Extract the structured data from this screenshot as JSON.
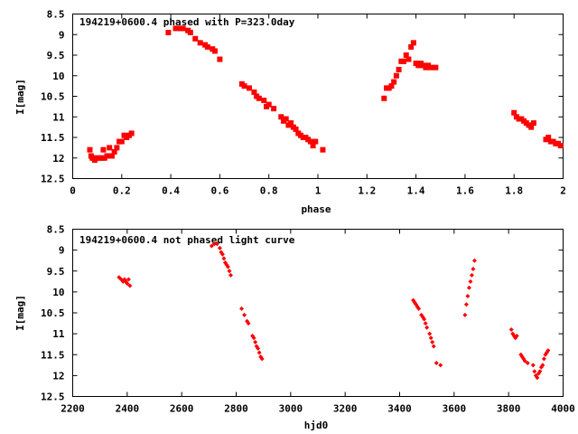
{
  "colors": {
    "points": "#ff0000",
    "axes": "#000000",
    "background": "#ffffff"
  },
  "chart_data": [
    {
      "type": "scatter",
      "title": "194219+0600.4 phased with P=323.0day",
      "xlabel": "phase",
      "ylabel": "I[mag]",
      "xlim": [
        0,
        2
      ],
      "ylim": [
        12.5,
        8.5
      ],
      "y_inverted": true,
      "grid": false,
      "xticks": [
        "0",
        "0.2",
        "0.4",
        "0.6",
        "0.8",
        "1",
        "1.2",
        "1.4",
        "1.6",
        "1.8",
        "2"
      ],
      "yticks": [
        "8.5",
        "9",
        "9.5",
        "10",
        "10.5",
        "11",
        "11.5",
        "12",
        "12.5"
      ],
      "series": [
        {
          "marker": "filled-square",
          "x": [
            0.07,
            0.075,
            0.08,
            0.085,
            0.09,
            0.1,
            0.11,
            0.12,
            0.125,
            0.13,
            0.14,
            0.15,
            0.16,
            0.17,
            0.18,
            0.19,
            0.2,
            0.21,
            0.22,
            0.23,
            0.24,
            0.39,
            0.42,
            0.44,
            0.45,
            0.47,
            0.48,
            0.5,
            0.52,
            0.54,
            0.55,
            0.57,
            0.58,
            0.6,
            0.69,
            0.7,
            0.72,
            0.74,
            0.75,
            0.76,
            0.78,
            0.79,
            0.8,
            0.82,
            0.85,
            0.86,
            0.87,
            0.88,
            0.89,
            0.9,
            0.91,
            0.92,
            0.93,
            0.94,
            0.95,
            0.96,
            0.97,
            0.98,
            0.99,
            1.02,
            1.27,
            1.28,
            1.29,
            1.3,
            1.31,
            1.32,
            1.33,
            1.34,
            1.35,
            1.36,
            1.37,
            1.38,
            1.39,
            1.4,
            1.41,
            1.42,
            1.43,
            1.44,
            1.45,
            1.46,
            1.48,
            1.8,
            1.81,
            1.82,
            1.83,
            1.84,
            1.85,
            1.86,
            1.87,
            1.88,
            1.93,
            1.94,
            1.95,
            1.96,
            1.97,
            1.98,
            1.99
          ],
          "y": [
            11.8,
            11.95,
            12.0,
            12.0,
            12.05,
            12.0,
            12.0,
            12.0,
            11.8,
            12.0,
            11.95,
            11.75,
            11.95,
            11.85,
            11.75,
            11.6,
            11.6,
            11.45,
            11.5,
            11.45,
            11.4,
            8.95,
            8.85,
            8.85,
            8.85,
            8.9,
            8.95,
            9.1,
            9.2,
            9.25,
            9.3,
            9.35,
            9.4,
            9.6,
            10.2,
            10.25,
            10.3,
            10.4,
            10.5,
            10.55,
            10.6,
            10.75,
            10.7,
            10.8,
            11.0,
            11.1,
            11.05,
            11.2,
            11.15,
            11.25,
            11.3,
            11.4,
            11.45,
            11.5,
            11.5,
            11.55,
            11.6,
            11.7,
            11.6,
            11.8,
            10.55,
            10.3,
            10.3,
            10.25,
            10.15,
            10.0,
            9.85,
            9.65,
            9.65,
            9.5,
            9.6,
            9.3,
            9.2,
            9.7,
            9.75,
            9.7,
            9.75,
            9.8,
            9.75,
            9.8,
            9.8,
            10.9,
            11.0,
            11.05,
            11.05,
            11.1,
            11.15,
            11.2,
            11.25,
            11.15,
            11.55,
            11.5,
            11.6,
            11.6,
            11.65,
            11.65,
            11.7
          ]
        }
      ]
    },
    {
      "type": "scatter",
      "title": "194219+0600.4 not phased light curve",
      "xlabel": "hjd0",
      "ylabel": "I[mag]",
      "xlim": [
        2200,
        4000
      ],
      "ylim": [
        12.5,
        8.5
      ],
      "y_inverted": true,
      "grid": false,
      "xticks": [
        "2200",
        "2400",
        "2600",
        "2800",
        "3000",
        "3200",
        "3400",
        "3600",
        "3800",
        "4000"
      ],
      "yticks": [
        "8.5",
        "9",
        "9.5",
        "10",
        "10.5",
        "11",
        "11.5",
        "12",
        "12.5"
      ],
      "series": [
        {
          "marker": "small-diamond",
          "x": [
            2370,
            2378,
            2385,
            2390,
            2395,
            2400,
            2405,
            2410,
            2710,
            2720,
            2730,
            2740,
            2745,
            2750,
            2755,
            2760,
            2765,
            2770,
            2775,
            2780,
            2820,
            2830,
            2840,
            2845,
            2860,
            2865,
            2870,
            2875,
            2880,
            2885,
            2890,
            2895,
            3450,
            3455,
            3460,
            3465,
            3470,
            3480,
            3485,
            3490,
            3495,
            3500,
            3510,
            3515,
            3520,
            3525,
            3535,
            3550,
            3640,
            3645,
            3650,
            3655,
            3660,
            3665,
            3670,
            3675,
            3810,
            3815,
            3820,
            3825,
            3830,
            3845,
            3850,
            3855,
            3860,
            3870,
            3890,
            3895,
            3900,
            3905,
            3910,
            3915,
            3920,
            3925,
            3930,
            3935,
            3940,
            3945
          ],
          "y": [
            9.65,
            9.7,
            9.75,
            9.7,
            9.75,
            9.8,
            9.7,
            9.85,
            8.9,
            8.85,
            8.85,
            8.95,
            9.05,
            9.1,
            9.2,
            9.3,
            9.35,
            9.4,
            9.5,
            9.6,
            10.4,
            10.55,
            10.7,
            10.75,
            11.05,
            11.1,
            11.2,
            11.3,
            11.35,
            11.45,
            11.55,
            11.6,
            10.2,
            10.25,
            10.3,
            10.35,
            10.4,
            10.55,
            10.6,
            10.65,
            10.75,
            10.85,
            11.0,
            11.1,
            11.2,
            11.3,
            11.7,
            11.75,
            10.55,
            10.3,
            10.1,
            9.9,
            9.75,
            9.6,
            9.45,
            9.25,
            10.9,
            11.0,
            11.05,
            11.1,
            11.05,
            11.5,
            11.55,
            11.6,
            11.65,
            11.7,
            11.75,
            11.9,
            12.0,
            12.05,
            11.95,
            11.9,
            11.8,
            11.75,
            11.6,
            11.5,
            11.45,
            11.4
          ]
        }
      ]
    }
  ]
}
